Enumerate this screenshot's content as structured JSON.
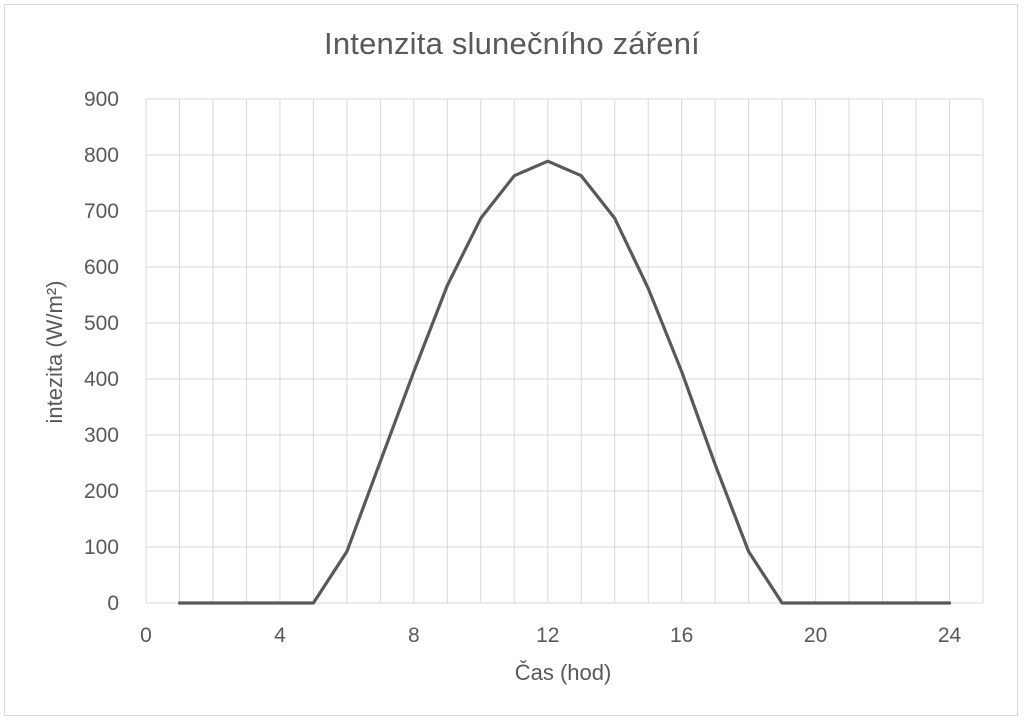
{
  "chart_data": {
    "type": "line",
    "title": "Intenzita slunečního záření",
    "xlabel": "Čas (hod)",
    "ylabel": "intezita (W/m²)",
    "xlim": [
      0,
      25
    ],
    "ylim": [
      0,
      900
    ],
    "x_ticks": [
      0,
      4,
      8,
      12,
      16,
      20,
      24
    ],
    "x_ticklabels": [
      "0",
      "4",
      "8",
      "12",
      "16",
      "20",
      "24"
    ],
    "x_minor_grid_step": 1,
    "y_ticks": [
      0,
      100,
      200,
      300,
      400,
      500,
      600,
      700,
      800,
      900
    ],
    "y_ticklabels": [
      "0",
      "100",
      "200",
      "300",
      "400",
      "500",
      "600",
      "700",
      "800",
      "900"
    ],
    "grid": true,
    "legend": "none",
    "colors": {
      "line": "#595959",
      "grid": "#d9d9d9",
      "text": "#595959",
      "border": "#d9d9d9"
    },
    "series": [
      {
        "x": [
          1,
          2,
          3,
          4,
          5,
          6,
          7,
          8,
          9,
          10,
          11,
          12,
          13,
          14,
          15,
          16,
          17,
          18,
          19,
          20,
          21,
          22,
          23,
          24
        ],
        "values": [
          0,
          0,
          0,
          0,
          0,
          92,
          253,
          413,
          567,
          687,
          763,
          789,
          763,
          687,
          562,
          413,
          247,
          92,
          0,
          0,
          0,
          0,
          0,
          0
        ]
      }
    ]
  }
}
